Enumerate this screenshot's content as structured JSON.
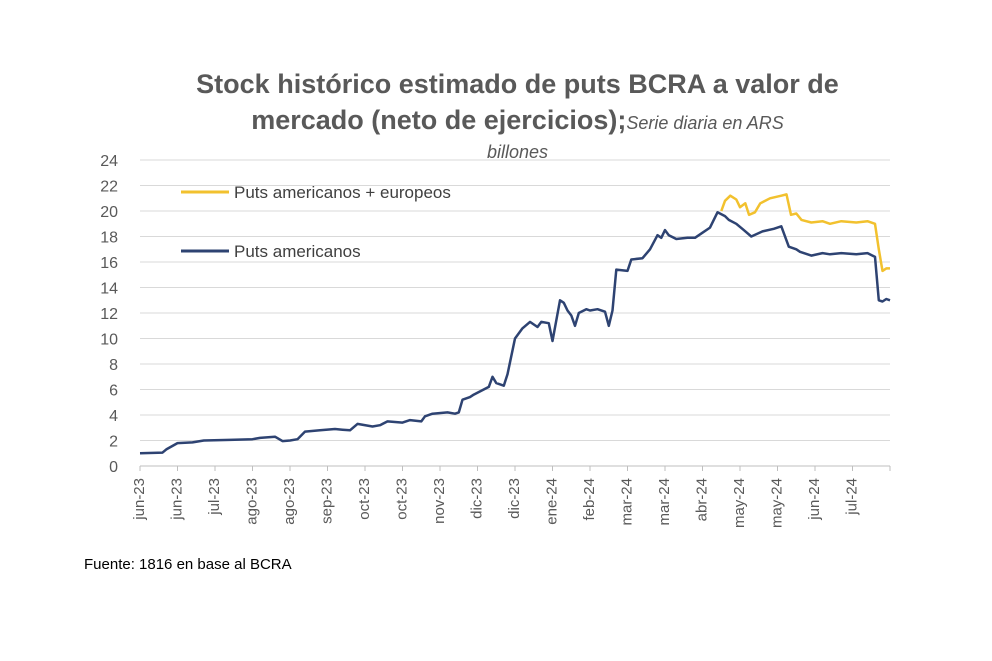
{
  "chart_data": {
    "type": "line",
    "title_line1": "Stock histórico estimado de puts BCRA a valor de",
    "title_line2": "mercado (neto de ejercicios);",
    "subtitle_part1": "Serie diaria en ARS",
    "subtitle_part2": "billones",
    "ylim": [
      0,
      24
    ],
    "yticks": [
      0,
      2,
      4,
      6,
      8,
      10,
      12,
      14,
      16,
      18,
      20,
      22,
      24
    ],
    "xlim": [
      0,
      1.0
    ],
    "xtick_labels": [
      "jun-23",
      "jun-23",
      "jul-23",
      "ago-23",
      "ago-23",
      "sep-23",
      "oct-23",
      "oct-23",
      "nov-23",
      "dic-23",
      "dic-23",
      "ene-24",
      "feb-24",
      "mar-24",
      "mar-24",
      "abr-24",
      "may-24",
      "may-24",
      "jun-24",
      "jul-24"
    ],
    "legend": [
      {
        "name": "Puts americanos + europeos",
        "color": "#F2C12E"
      },
      {
        "name": "Puts americanos",
        "color": "#2E4372"
      }
    ],
    "series": [
      {
        "name": "Puts americanos + europeos",
        "color": "#F2C12E",
        "points": [
          [
            0.775,
            20.0
          ],
          [
            0.78,
            20.8
          ],
          [
            0.787,
            21.2
          ],
          [
            0.795,
            20.9
          ],
          [
            0.8,
            20.3
          ],
          [
            0.807,
            20.6
          ],
          [
            0.812,
            19.7
          ],
          [
            0.82,
            19.9
          ],
          [
            0.827,
            20.6
          ],
          [
            0.84,
            21.0
          ],
          [
            0.855,
            21.2
          ],
          [
            0.862,
            21.3
          ],
          [
            0.868,
            19.7
          ],
          [
            0.875,
            19.8
          ],
          [
            0.882,
            19.3
          ],
          [
            0.895,
            19.1
          ],
          [
            0.91,
            19.2
          ],
          [
            0.92,
            19.0
          ],
          [
            0.935,
            19.2
          ],
          [
            0.955,
            19.1
          ],
          [
            0.97,
            19.2
          ],
          [
            0.98,
            19.0
          ],
          [
            0.985,
            17.0
          ],
          [
            0.99,
            15.3
          ],
          [
            0.995,
            15.5
          ],
          [
            1.0,
            15.5
          ]
        ]
      },
      {
        "name": "Puts americanos",
        "color": "#2E4372",
        "points": [
          [
            0.0,
            1.0
          ],
          [
            0.03,
            1.05
          ],
          [
            0.035,
            1.3
          ],
          [
            0.05,
            1.8
          ],
          [
            0.07,
            1.85
          ],
          [
            0.085,
            2.0
          ],
          [
            0.12,
            2.05
          ],
          [
            0.15,
            2.1
          ],
          [
            0.16,
            2.2
          ],
          [
            0.18,
            2.3
          ],
          [
            0.19,
            1.95
          ],
          [
            0.2,
            2.0
          ],
          [
            0.21,
            2.1
          ],
          [
            0.22,
            2.7
          ],
          [
            0.24,
            2.8
          ],
          [
            0.26,
            2.9
          ],
          [
            0.27,
            2.85
          ],
          [
            0.28,
            2.8
          ],
          [
            0.29,
            3.3
          ],
          [
            0.31,
            3.1
          ],
          [
            0.32,
            3.2
          ],
          [
            0.33,
            3.5
          ],
          [
            0.35,
            3.4
          ],
          [
            0.36,
            3.6
          ],
          [
            0.375,
            3.5
          ],
          [
            0.38,
            3.9
          ],
          [
            0.39,
            4.1
          ],
          [
            0.41,
            4.2
          ],
          [
            0.42,
            4.1
          ],
          [
            0.425,
            4.2
          ],
          [
            0.43,
            5.2
          ],
          [
            0.44,
            5.4
          ],
          [
            0.445,
            5.6
          ],
          [
            0.455,
            5.9
          ],
          [
            0.465,
            6.2
          ],
          [
            0.47,
            7.0
          ],
          [
            0.475,
            6.5
          ],
          [
            0.485,
            6.3
          ],
          [
            0.49,
            7.2
          ],
          [
            0.5,
            10.0
          ],
          [
            0.51,
            10.8
          ],
          [
            0.52,
            11.3
          ],
          [
            0.53,
            10.9
          ],
          [
            0.535,
            11.3
          ],
          [
            0.545,
            11.2
          ],
          [
            0.55,
            9.8
          ],
          [
            0.56,
            13.0
          ],
          [
            0.565,
            12.8
          ],
          [
            0.57,
            12.2
          ],
          [
            0.575,
            11.8
          ],
          [
            0.58,
            11.0
          ],
          [
            0.585,
            12.0
          ],
          [
            0.595,
            12.3
          ],
          [
            0.6,
            12.2
          ],
          [
            0.61,
            12.3
          ],
          [
            0.62,
            12.1
          ],
          [
            0.625,
            11.0
          ],
          [
            0.63,
            12.2
          ],
          [
            0.635,
            15.4
          ],
          [
            0.65,
            15.3
          ],
          [
            0.655,
            16.2
          ],
          [
            0.67,
            16.3
          ],
          [
            0.68,
            17.0
          ],
          [
            0.69,
            18.1
          ],
          [
            0.695,
            17.9
          ],
          [
            0.7,
            18.5
          ],
          [
            0.705,
            18.1
          ],
          [
            0.715,
            17.8
          ],
          [
            0.73,
            17.9
          ],
          [
            0.74,
            17.9
          ],
          [
            0.75,
            18.3
          ],
          [
            0.76,
            18.7
          ],
          [
            0.77,
            19.9
          ],
          [
            0.78,
            19.6
          ],
          [
            0.785,
            19.3
          ],
          [
            0.795,
            19.0
          ],
          [
            0.805,
            18.5
          ],
          [
            0.815,
            18.0
          ],
          [
            0.83,
            18.4
          ],
          [
            0.845,
            18.6
          ],
          [
            0.855,
            18.8
          ],
          [
            0.865,
            17.2
          ],
          [
            0.875,
            17.0
          ],
          [
            0.88,
            16.8
          ],
          [
            0.895,
            16.5
          ],
          [
            0.91,
            16.7
          ],
          [
            0.92,
            16.6
          ],
          [
            0.935,
            16.7
          ],
          [
            0.955,
            16.6
          ],
          [
            0.97,
            16.7
          ],
          [
            0.98,
            16.4
          ],
          [
            0.985,
            13.0
          ],
          [
            0.99,
            12.9
          ],
          [
            0.995,
            13.1
          ],
          [
            1.0,
            13.0
          ]
        ]
      }
    ]
  },
  "source": "Fuente: 1816 en base al BCRA"
}
